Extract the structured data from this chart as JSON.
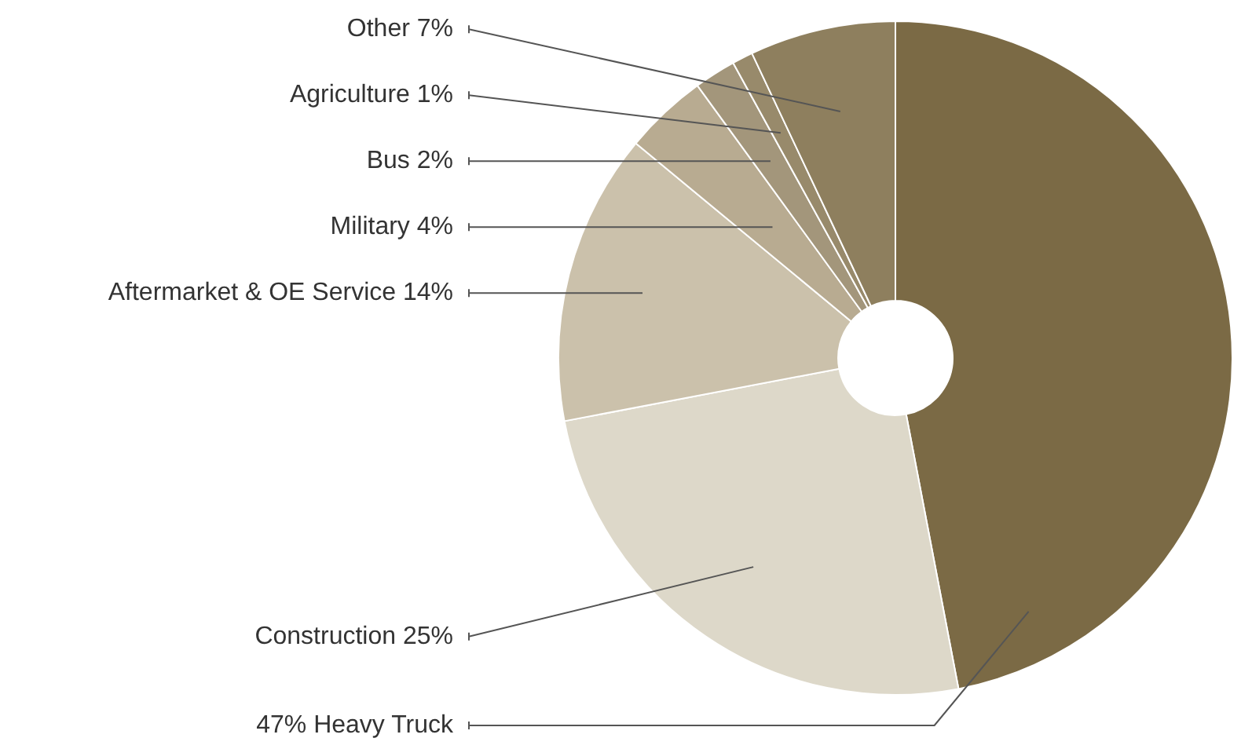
{
  "chart_data": {
    "type": "donut",
    "categories": [
      "47% Heavy Truck",
      "Construction 25%",
      "Aftermarket & OE Service 14%",
      "Military 4%",
      "Bus 2%",
      "Agriculture 1%",
      "Other 7%"
    ],
    "values": [
      47,
      25,
      14,
      4,
      2,
      1,
      7
    ],
    "colors": [
      "#7b6a45",
      "#ddd8c9",
      "#cbc1ab",
      "#b8ab91",
      "#a3967b",
      "#988a6b",
      "#8e7f5e"
    ]
  }
}
